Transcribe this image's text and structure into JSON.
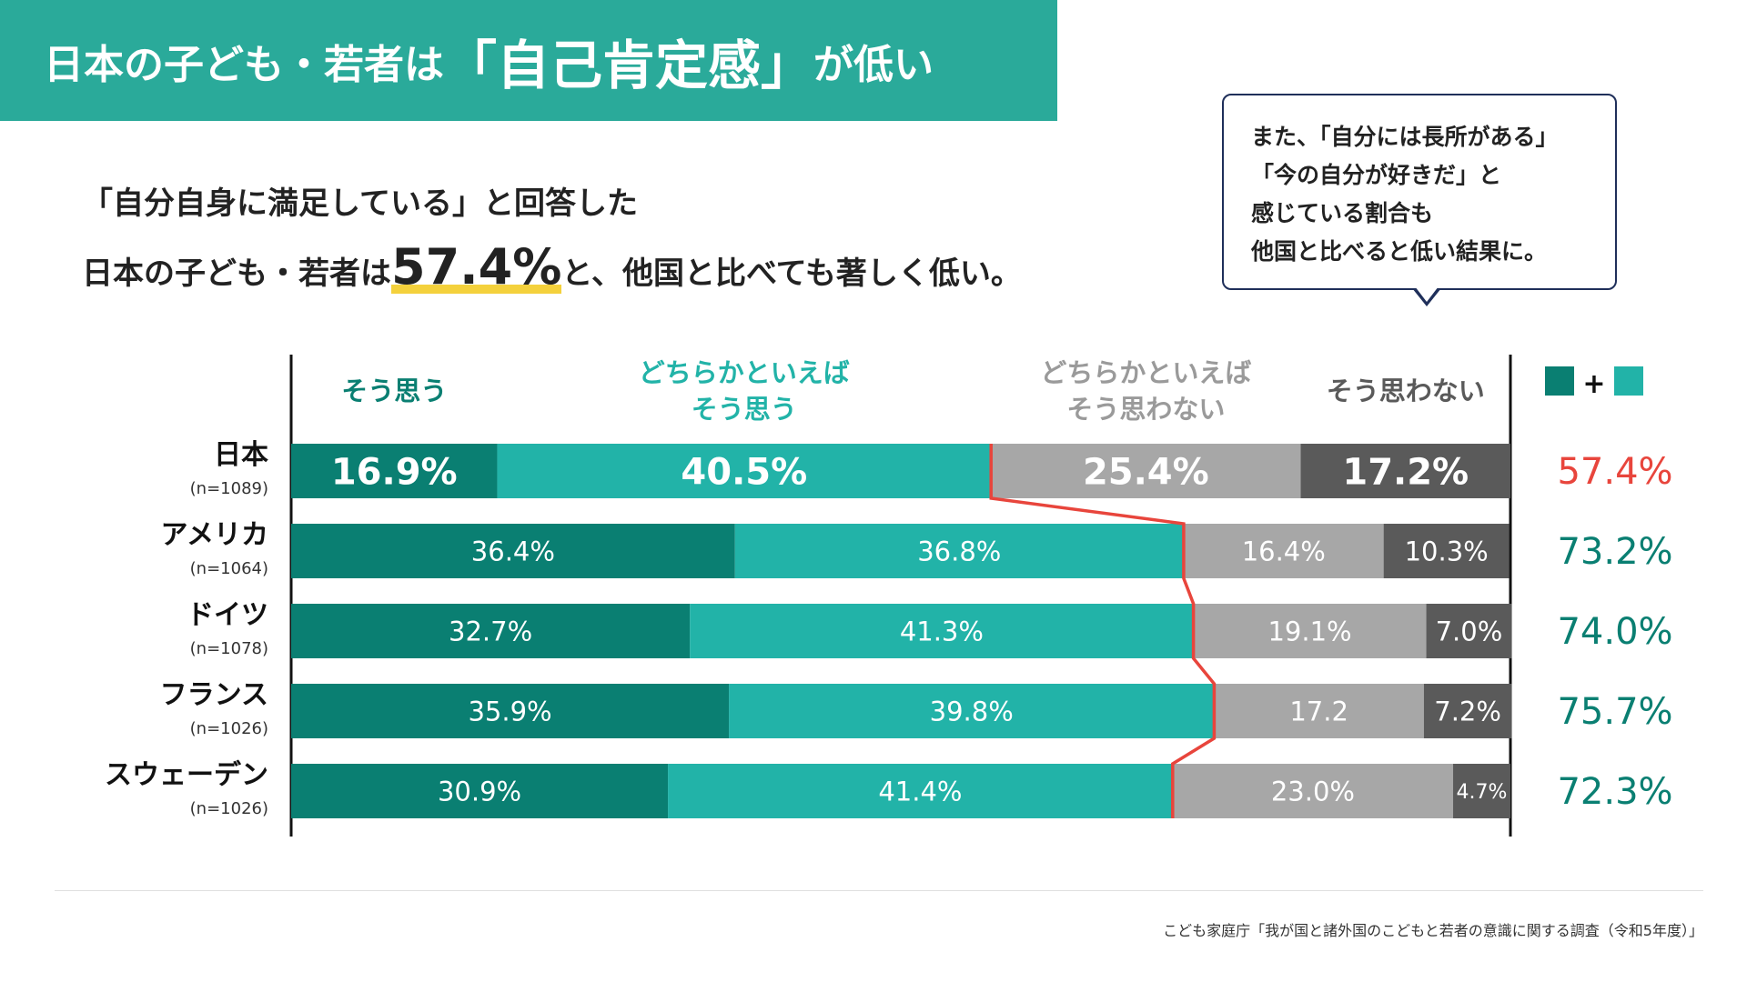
{
  "title": {
    "part1": "日本の子ども・若者は",
    "part2": "「自己肯定感」",
    "part3": "が低い"
  },
  "subtitle": {
    "line1": "「自分自身に満足している」と回答した",
    "line2_prefix": "日本の子ども・若者は",
    "line2_value": "57.4%",
    "line2_suffix": "と、他国と比べても著しく低い。"
  },
  "callout": {
    "lines": [
      "また、「自分には長所がある」",
      "「今の自分が好きだ」と",
      "感じている割合も",
      "他国と比べると低い結果に。"
    ]
  },
  "legend": {
    "plus": "+"
  },
  "source": "こども家庭庁「我が国と諸外国のこどもと若者の意識に関する調査（令和5年度）」",
  "chart_data": {
    "type": "bar",
    "orientation": "horizontal",
    "stacked": true,
    "categories": [
      "日本",
      "アメリカ",
      "ドイツ",
      "フランス",
      "スウェーデン"
    ],
    "sample_sizes": [
      "(n=1089)",
      "(n=1064)",
      "(n=1078)",
      "(n=1026)",
      "(n=1026)"
    ],
    "series": [
      {
        "name": "そう思う",
        "name_lines": [
          "そう思う"
        ],
        "values": [
          16.9,
          36.4,
          32.7,
          35.9,
          30.9
        ],
        "labels": [
          "16.9%",
          "36.4%",
          "32.7%",
          "35.9%",
          "30.9%"
        ],
        "color": "#0a7f72",
        "header_color": "#0a7f72"
      },
      {
        "name": "どちらかといえばそう思う",
        "name_lines": [
          "どちらかといえば",
          "そう思う"
        ],
        "values": [
          40.5,
          36.8,
          41.3,
          39.8,
          41.4
        ],
        "labels": [
          "40.5%",
          "36.8%",
          "41.3%",
          "39.8%",
          "41.4%"
        ],
        "color": "#22b3a8",
        "header_color": "#22b3a8"
      },
      {
        "name": "どちらかといえばそう思わない",
        "name_lines": [
          "どちらかといえば",
          "そう思わない"
        ],
        "values": [
          25.4,
          16.4,
          19.1,
          17.2,
          23.0
        ],
        "labels": [
          "25.4%",
          "16.4%",
          "19.1%",
          "17.2",
          "23.0%"
        ],
        "color": "#a7a7a7",
        "header_color": "#9a9a9a"
      },
      {
        "name": "そう思わない",
        "name_lines": [
          "そう思わない"
        ],
        "values": [
          17.2,
          10.3,
          7.0,
          7.2,
          4.7
        ],
        "labels": [
          "17.2%",
          "10.3%",
          "7.0%",
          "7.2%",
          "4.7%"
        ],
        "color": "#5a5a5a",
        "header_color": "#5a5a5a"
      }
    ],
    "totals": {
      "values": [
        57.4,
        73.2,
        74.0,
        75.7,
        72.3
      ],
      "labels": [
        "57.4%",
        "73.2%",
        "74.0%",
        "75.7%",
        "72.3%"
      ],
      "highlight_index": 0,
      "highlight_color": "#e8453c",
      "color": "#0a7f72"
    },
    "positive_line_color": "#e8453c"
  }
}
